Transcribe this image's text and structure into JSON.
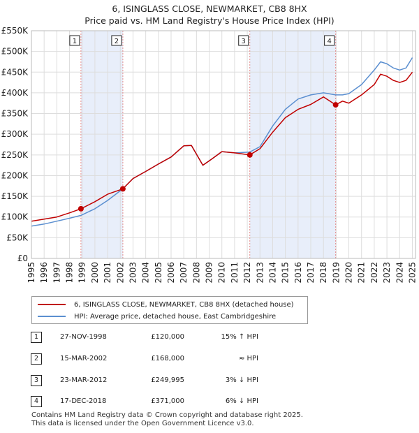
{
  "title_line1": "6, ISINGLASS CLOSE, NEWMARKET, CB8 8HX",
  "title_line2": "Price paid vs. HM Land Registry's House Price Index (HPI)",
  "chart_data": {
    "type": "line",
    "title": "6, ISINGLASS CLOSE, NEWMARKET, CB8 8HX — Price paid vs. HM Land Registry's House Price Index (HPI)",
    "xlabel": "",
    "ylabel": "",
    "xlim": [
      1995,
      2025.25
    ],
    "ylim": [
      0,
      550000
    ],
    "yticks": [
      0,
      50000,
      100000,
      150000,
      200000,
      250000,
      300000,
      350000,
      400000,
      450000,
      500000,
      550000
    ],
    "ytick_labels": [
      "£0",
      "£50K",
      "£100K",
      "£150K",
      "£200K",
      "£250K",
      "£300K",
      "£350K",
      "£400K",
      "£450K",
      "£500K",
      "£550K"
    ],
    "xticks": [
      1995,
      1996,
      1997,
      1998,
      1999,
      2000,
      2001,
      2002,
      2003,
      2004,
      2005,
      2006,
      2007,
      2008,
      2009,
      2010,
      2011,
      2012,
      2013,
      2014,
      2015,
      2016,
      2017,
      2018,
      2019,
      2020,
      2021,
      2022,
      2023,
      2024,
      2025
    ],
    "grid": true,
    "colors": {
      "property": "#c00000",
      "hpi": "#5b8fd0",
      "shade": "#e8eefa",
      "marker_line": "#e38b8b"
    },
    "series": [
      {
        "name": "6, ISINGLASS CLOSE, NEWMARKET, CB8 8HX (detached house)",
        "x": [
          1995.0,
          1996.0,
          1997.0,
          1998.0,
          1998.9,
          2000.0,
          2001.0,
          2002.2,
          2003.0,
          2004.0,
          2005.0,
          2006.0,
          2007.0,
          2007.6,
          2008.5,
          2009.2,
          2010.0,
          2011.0,
          2012.2,
          2013.0,
          2014.0,
          2015.0,
          2016.0,
          2017.0,
          2018.0,
          2018.96,
          2019.5,
          2020.0,
          2021.0,
          2022.0,
          2022.5,
          2023.0,
          2023.5,
          2024.0,
          2024.5,
          2025.0
        ],
        "values": [
          90000,
          95000,
          100000,
          110000,
          120000,
          137000,
          155000,
          168000,
          193000,
          210000,
          228000,
          245000,
          272000,
          273000,
          225000,
          240000,
          258000,
          255000,
          249995,
          265000,
          305000,
          340000,
          360000,
          372000,
          390000,
          371000,
          380000,
          375000,
          395000,
          420000,
          445000,
          440000,
          430000,
          425000,
          430000,
          450000
        ]
      },
      {
        "name": "HPI: Average price, detached house, East Cambridgeshire",
        "x": [
          1995.0,
          1996.0,
          1997.0,
          1998.0,
          1998.9,
          2000.0,
          2001.0,
          2002.2,
          2003.0,
          2004.0,
          2005.0,
          2006.0,
          2007.0,
          2007.6,
          2008.5,
          2009.2,
          2010.0,
          2011.0,
          2012.2,
          2013.0,
          2014.0,
          2015.0,
          2016.0,
          2017.0,
          2018.0,
          2018.96,
          2019.5,
          2020.0,
          2021.0,
          2022.0,
          2022.5,
          2023.0,
          2023.5,
          2024.0,
          2024.5,
          2025.0
        ],
        "values": [
          78000,
          83000,
          90000,
          97000,
          104000,
          120000,
          140000,
          168000,
          193000,
          210000,
          228000,
          245000,
          272000,
          273000,
          225000,
          240000,
          258000,
          255000,
          257000,
          270000,
          320000,
          360000,
          385000,
          395000,
          400000,
          395000,
          395000,
          398000,
          420000,
          455000,
          475000,
          470000,
          460000,
          455000,
          460000,
          485000
        ]
      }
    ],
    "sales": [
      {
        "label": "1",
        "x": 1998.9,
        "value": 120000
      },
      {
        "label": "2",
        "x": 2002.2,
        "value": 168000
      },
      {
        "label": "3",
        "x": 2012.2,
        "value": 249995
      },
      {
        "label": "4",
        "x": 2018.96,
        "value": 371000
      }
    ],
    "shaded_ranges": [
      [
        1998.9,
        2002.2
      ],
      [
        2012.2,
        2018.96
      ]
    ]
  },
  "legend": {
    "property": "6, ISINGLASS CLOSE, NEWMARKET, CB8 8HX (detached house)",
    "hpi": "HPI: Average price, detached house, East Cambridgeshire"
  },
  "sales_table": [
    {
      "num": "1",
      "date": "27-NOV-1998",
      "price": "£120,000",
      "hpi": "15% ↑ HPI"
    },
    {
      "num": "2",
      "date": "15-MAR-2002",
      "price": "£168,000",
      "hpi": "≈ HPI"
    },
    {
      "num": "3",
      "date": "23-MAR-2012",
      "price": "£249,995",
      "hpi": "3% ↓ HPI"
    },
    {
      "num": "4",
      "date": "17-DEC-2018",
      "price": "£371,000",
      "hpi": "6% ↓ HPI"
    }
  ],
  "footer_line1": "Contains HM Land Registry data © Crown copyright and database right 2025.",
  "footer_line2": "This data is licensed under the Open Government Licence v3.0."
}
